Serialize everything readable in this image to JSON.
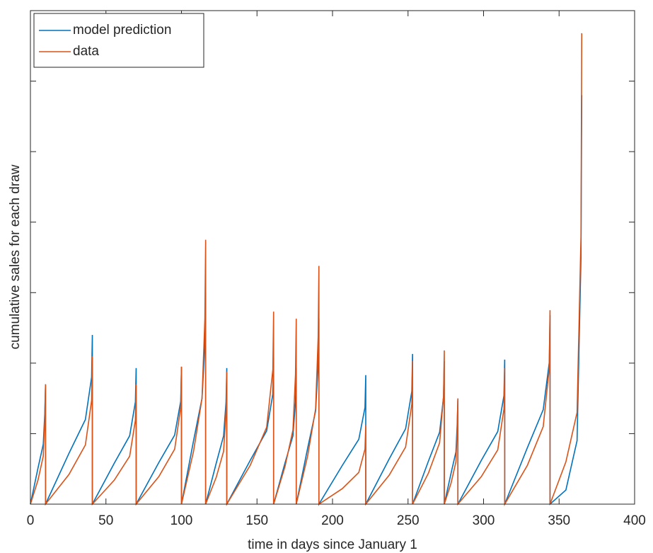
{
  "chart_data": {
    "type": "line",
    "xlabel": "time in days since January 1",
    "ylabel": "cumulative sales for each draw",
    "x": [
      0,
      5,
      8.5,
      9.5,
      10,
      10,
      25.5,
      36.4,
      40.5,
      41,
      41,
      55.5,
      65.7,
      69.5,
      70,
      70,
      85,
      95.5,
      99.5,
      100,
      100,
      108,
      113.6,
      115.5,
      116,
      116,
      123,
      127.9,
      129.5,
      130,
      130,
      145.5,
      156.4,
      160.5,
      161,
      161,
      168.5,
      173.8,
      175.5,
      176,
      176,
      183.5,
      188.8,
      190.5,
      191,
      191,
      206.5,
      217.4,
      221.5,
      222,
      222,
      237.5,
      248.4,
      252.5,
      253,
      253,
      263.5,
      270.9,
      273.5,
      274,
      274,
      278.5,
      281.7,
      282.5,
      283,
      283,
      298.5,
      309.4,
      313.5,
      314,
      314,
      329,
      339.5,
      343.5,
      344,
      344,
      354.5,
      361.9,
      364.5,
      365
    ],
    "series": [
      {
        "name": "model prediction",
        "color": "#0072bd",
        "values": [
          0,
          0.51,
          0.85,
          1.28,
          1.7,
          0,
          0.72,
          1.2,
          1.8,
          2.4,
          0,
          0.58,
          0.97,
          1.45,
          1.93,
          0,
          0.59,
          0.98,
          1.46,
          1.95,
          0,
          0.9,
          1.5,
          2.25,
          3.0,
          0,
          0.58,
          0.97,
          1.45,
          1.93,
          0,
          0.62,
          1.04,
          1.56,
          2.08,
          0,
          0.58,
          0.97,
          1.45,
          1.93,
          0,
          0.79,
          1.32,
          1.97,
          2.63,
          0,
          0.55,
          0.92,
          1.37,
          1.83,
          0,
          0.64,
          1.07,
          1.6,
          2.13,
          0,
          0.61,
          1.02,
          1.52,
          2.03,
          0,
          0.44,
          0.74,
          1.11,
          1.48,
          0,
          0.62,
          1.03,
          1.54,
          2.05,
          0,
          0.8,
          1.34,
          2.01,
          2.68,
          0,
          0.2,
          0.9,
          3.5,
          5.8
        ]
      },
      {
        "name": "data",
        "color": "#d95319",
        "values": [
          0,
          0.34,
          0.68,
          1.19,
          1.7,
          0,
          0.42,
          0.84,
          1.47,
          2.1,
          0,
          0.34,
          0.68,
          1.19,
          1.7,
          0,
          0.39,
          0.78,
          1.37,
          1.95,
          0,
          0.75,
          1.5,
          2.63,
          3.75,
          0,
          0.38,
          0.75,
          1.32,
          1.88,
          0,
          0.55,
          1.09,
          1.91,
          2.73,
          0,
          0.53,
          1.05,
          1.84,
          2.63,
          0,
          0.68,
          1.35,
          2.37,
          3.38,
          0,
          0.22,
          0.45,
          0.78,
          1.12,
          0,
          0.41,
          0.81,
          1.42,
          2.03,
          0,
          0.44,
          0.87,
          1.53,
          2.18,
          0,
          0.3,
          0.6,
          1.05,
          1.5,
          0,
          0.39,
          0.77,
          1.35,
          1.93,
          0,
          0.55,
          1.1,
          1.93,
          2.75,
          0,
          0.6,
          1.3,
          3.8,
          6.68
        ]
      }
    ],
    "xlim": [
      0,
      400
    ],
    "xticks": [
      0,
      50,
      100,
      150,
      200,
      250,
      300,
      350,
      400
    ],
    "ylim": [
      0,
      7
    ],
    "yticks": [
      0,
      1,
      2,
      3,
      4,
      5,
      6,
      7
    ],
    "legend": "upper-left"
  }
}
